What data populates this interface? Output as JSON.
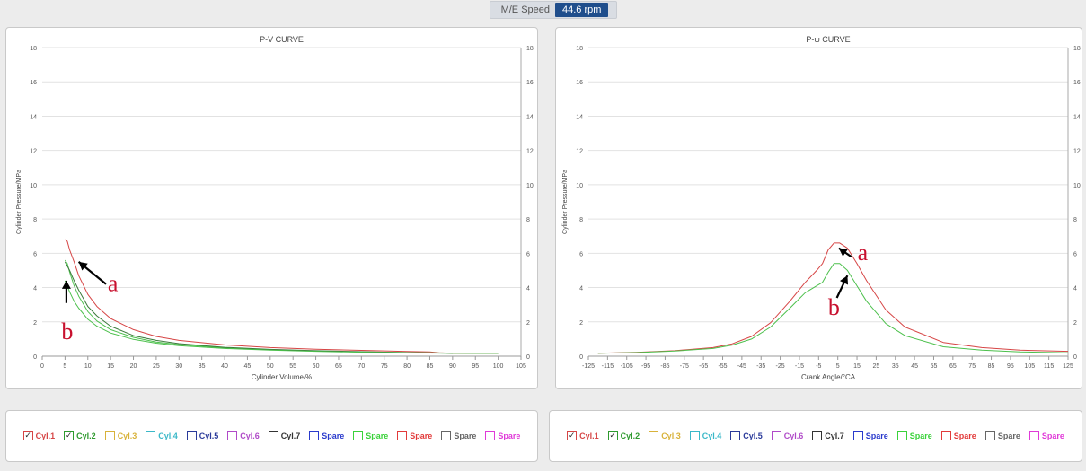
{
  "header": {
    "speed_label": "M/E Speed",
    "speed_value": "44.6 rpm"
  },
  "chart_data": [
    {
      "type": "line",
      "title": "P-V CURVE",
      "xlabel": "Cylinder Volume/%",
      "ylabel": "Cylinder Pressure/MPa",
      "xlim": [
        0,
        105
      ],
      "ylim": [
        0,
        18
      ],
      "xticks": [
        0,
        5,
        10,
        15,
        20,
        25,
        30,
        35,
        40,
        45,
        50,
        55,
        60,
        65,
        70,
        75,
        80,
        85,
        90,
        95,
        100,
        105
      ],
      "yticks": [
        0,
        2,
        4,
        6,
        8,
        10,
        12,
        14,
        16,
        18
      ],
      "grid": true,
      "series": [
        {
          "name": "Cyl.1",
          "color": "#d64545",
          "x": [
            5,
            5.5,
            6,
            7,
            8,
            10,
            12,
            15,
            20,
            25,
            30,
            40,
            50,
            60,
            70,
            80,
            85,
            87,
            90,
            95,
            100
          ],
          "y": [
            6.8,
            6.7,
            6.2,
            5.5,
            4.7,
            3.6,
            2.9,
            2.2,
            1.55,
            1.15,
            0.92,
            0.66,
            0.5,
            0.41,
            0.34,
            0.27,
            0.25,
            0.2,
            0.17,
            0.17,
            0.17
          ]
        },
        {
          "name": "Cyl.2",
          "color": "#4cc04c",
          "x": [
            5,
            5.5,
            6,
            7,
            8,
            10,
            12,
            15,
            20,
            25,
            30,
            40,
            50,
            60,
            70,
            80,
            85,
            90,
            95,
            100
          ],
          "y": [
            5.6,
            5.4,
            4.9,
            4.1,
            3.5,
            2.6,
            2.05,
            1.55,
            1.1,
            0.82,
            0.68,
            0.48,
            0.37,
            0.3,
            0.25,
            0.21,
            0.2,
            0.18,
            0.17,
            0.17
          ]
        },
        {
          "name": "",
          "color": "#3a7a3a",
          "x": [
            5,
            6,
            7,
            8,
            10,
            12,
            15,
            20,
            25,
            30,
            40,
            50,
            60,
            70,
            80,
            90
          ],
          "y": [
            5.5,
            5.0,
            4.4,
            3.85,
            2.9,
            2.35,
            1.75,
            1.2,
            0.92,
            0.73,
            0.52,
            0.4,
            0.32,
            0.26,
            0.21,
            0.17
          ]
        },
        {
          "name": "",
          "color": "#4cc04c",
          "x": [
            5,
            6,
            7,
            8,
            10,
            12,
            15,
            20,
            25,
            30,
            40,
            50,
            60,
            70,
            80,
            90,
            100
          ],
          "y": [
            4.4,
            3.75,
            3.2,
            2.8,
            2.15,
            1.75,
            1.35,
            0.98,
            0.76,
            0.62,
            0.45,
            0.35,
            0.28,
            0.23,
            0.2,
            0.17,
            0.17
          ]
        }
      ],
      "annotations": [
        {
          "text": "a",
          "x": 15.5,
          "y": 3.8,
          "arrow_to": [
            8,
            5.5
          ],
          "arrow_from": [
            14,
            4.2
          ]
        },
        {
          "text": "b",
          "x": 5.5,
          "y": 1.0,
          "arrow_to": [
            5.3,
            4.4
          ],
          "arrow_from": [
            5.3,
            3.1
          ]
        }
      ]
    },
    {
      "type": "line",
      "title": "P-ψ CURVE",
      "xlabel": "Crank Angle/°CA",
      "ylabel": "Cylinder Pressure/MPa",
      "xlim": [
        -125,
        125
      ],
      "ylim": [
        0,
        18
      ],
      "xticks": [
        -125,
        -115,
        -105,
        -95,
        -85,
        -75,
        -65,
        -55,
        -45,
        -35,
        -25,
        -15,
        -5,
        5,
        15,
        25,
        35,
        45,
        55,
        65,
        75,
        85,
        95,
        105,
        115,
        125
      ],
      "yticks": [
        0,
        2,
        4,
        6,
        8,
        10,
        12,
        14,
        16,
        18
      ],
      "grid": true,
      "series": [
        {
          "name": "Cyl.1",
          "color": "#d64545",
          "x": [
            -120,
            -100,
            -80,
            -60,
            -50,
            -40,
            -30,
            -20,
            -12,
            -6,
            -3,
            0,
            3,
            6,
            10,
            15,
            20,
            30,
            40,
            60,
            80,
            100,
            125
          ],
          "y": [
            0.17,
            0.22,
            0.32,
            0.5,
            0.72,
            1.15,
            1.95,
            3.2,
            4.3,
            5.0,
            5.4,
            6.2,
            6.6,
            6.6,
            6.3,
            5.4,
            4.4,
            2.7,
            1.7,
            0.8,
            0.5,
            0.35,
            0.28
          ]
        },
        {
          "name": "Cyl.2",
          "color": "#4cc04c",
          "x": [
            -120,
            -100,
            -80,
            -60,
            -50,
            -40,
            -30,
            -20,
            -12,
            -6,
            -3,
            0,
            3,
            6,
            10,
            15,
            20,
            30,
            40,
            60,
            80,
            100,
            125
          ],
          "y": [
            0.17,
            0.21,
            0.3,
            0.45,
            0.65,
            1.0,
            1.7,
            2.8,
            3.7,
            4.1,
            4.3,
            4.9,
            5.4,
            5.4,
            5.0,
            4.1,
            3.2,
            1.9,
            1.2,
            0.55,
            0.35,
            0.25,
            0.2
          ]
        }
      ],
      "annotations": [
        {
          "text": "a",
          "x": 18,
          "y": 5.6,
          "arrow_to": [
            5.5,
            6.3
          ],
          "arrow_from": [
            12,
            5.8
          ]
        },
        {
          "text": "b",
          "x": 3,
          "y": 2.4,
          "arrow_to": [
            10,
            4.7
          ],
          "arrow_from": [
            4.5,
            3.4
          ]
        }
      ]
    }
  ],
  "legend_left": {
    "items": [
      {
        "label": "Cyl.1",
        "color": "#d64545",
        "checked": true,
        "mark": "✓"
      },
      {
        "label": "Cyl.2",
        "color": "#2e9a2e",
        "checked": true,
        "mark": "✓"
      },
      {
        "label": "Cyl.3",
        "color": "#d8b23a",
        "checked": false,
        "mark": ""
      },
      {
        "label": "Cyl.4",
        "color": "#3ab8c8",
        "checked": false,
        "mark": ""
      },
      {
        "label": "Cyl.5",
        "color": "#2a3a9a",
        "checked": false,
        "mark": ""
      },
      {
        "label": "Cyl.6",
        "color": "#b04ac8",
        "checked": false,
        "mark": ""
      },
      {
        "label": "Cyl.7",
        "color": "#333333",
        "checked": false,
        "mark": ""
      },
      {
        "label": "Spare",
        "color": "#2a3acc",
        "checked": false,
        "mark": ""
      },
      {
        "label": "Spare",
        "color": "#3ad23a",
        "checked": false,
        "mark": ""
      },
      {
        "label": "Spare",
        "color": "#e23a3a",
        "checked": false,
        "mark": ""
      },
      {
        "label": "Spare",
        "color": "#666666",
        "checked": false,
        "mark": ""
      },
      {
        "label": "Spare",
        "color": "#e03ad8",
        "checked": false,
        "mark": ""
      }
    ]
  },
  "legend_right": {
    "items": [
      {
        "label": "Cyl.1",
        "color": "#d64545",
        "checked": true,
        "mark": "✓"
      },
      {
        "label": "Cyl.2",
        "color": "#2e9a2e",
        "checked": true,
        "mark": "✓"
      },
      {
        "label": "Cyl.3",
        "color": "#d8b23a",
        "checked": false,
        "mark": ""
      },
      {
        "label": "Cyl.4",
        "color": "#3ab8c8",
        "checked": false,
        "mark": ""
      },
      {
        "label": "Cyl.5",
        "color": "#2a3a9a",
        "checked": false,
        "mark": ""
      },
      {
        "label": "Cyl.6",
        "color": "#b04ac8",
        "checked": false,
        "mark": ""
      },
      {
        "label": "Cyl.7",
        "color": "#333333",
        "checked": false,
        "mark": ""
      },
      {
        "label": "Spare",
        "color": "#2a3acc",
        "checked": false,
        "mark": ""
      },
      {
        "label": "Spare",
        "color": "#3ad23a",
        "checked": false,
        "mark": ""
      },
      {
        "label": "Spare",
        "color": "#e23a3a",
        "checked": false,
        "mark": ""
      },
      {
        "label": "Spare",
        "color": "#666666",
        "checked": false,
        "mark": ""
      },
      {
        "label": "Spare",
        "color": "#e03ad8",
        "checked": false,
        "mark": ""
      }
    ]
  }
}
